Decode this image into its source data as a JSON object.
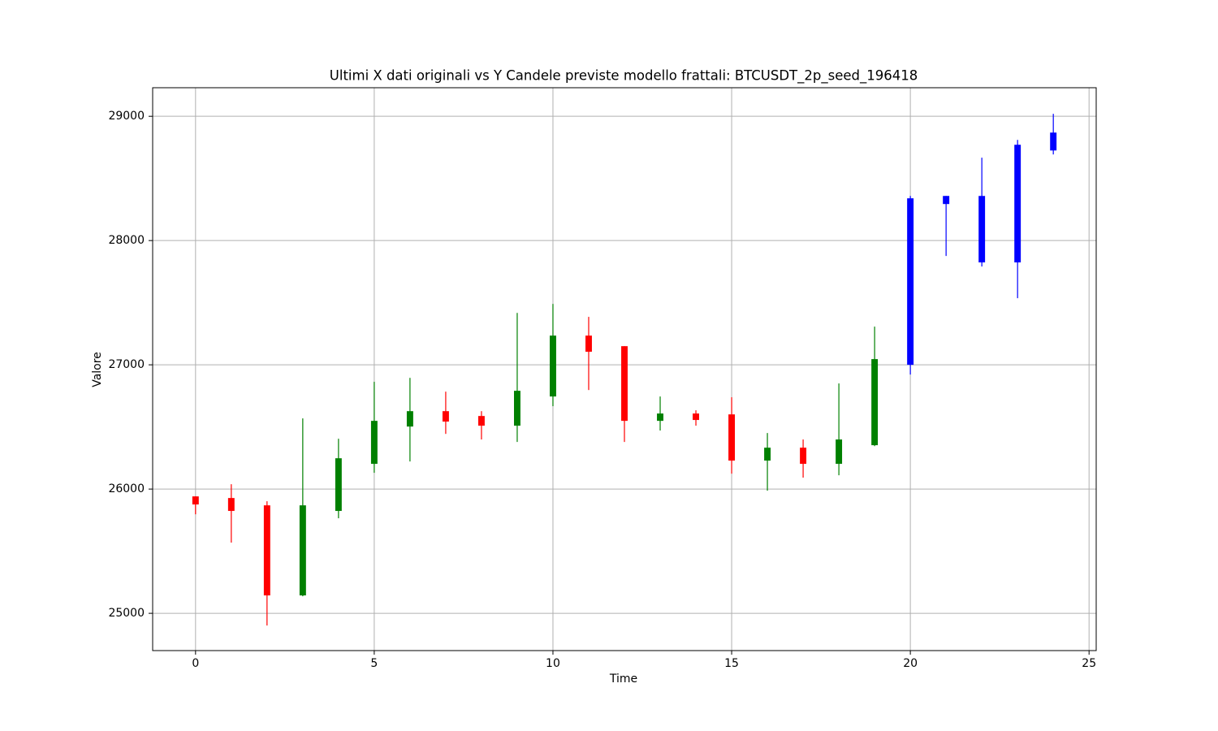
{
  "chart_data": {
    "type": "candlestick",
    "title": "Ultimi X dati originali vs Y Candele previste modello frattali: BTCUSDT_2p_seed_196418",
    "xlabel": "Time",
    "ylabel": "Valore",
    "x": [
      0,
      1,
      2,
      3,
      4,
      5,
      6,
      7,
      8,
      9,
      10,
      11,
      12,
      13,
      14,
      15,
      16,
      17,
      18,
      19,
      20,
      21,
      22,
      23,
      24
    ],
    "open": [
      25941,
      25928,
      25869,
      25144,
      25824,
      26203,
      26503,
      26627,
      26588,
      26510,
      26745,
      27235,
      27150,
      26549,
      26608,
      26601,
      26229,
      26333,
      26203,
      26353,
      27000,
      28359,
      27824,
      27824,
      28725
    ],
    "high": [
      25941,
      26039,
      25902,
      26569,
      26405,
      26863,
      26895,
      26784,
      26627,
      27418,
      27490,
      27386,
      27150,
      26745,
      26634,
      26739,
      26451,
      26399,
      26850,
      27307,
      28359,
      28359,
      28667,
      28810,
      29020
    ],
    "low": [
      25797,
      25569,
      24902,
      25137,
      25765,
      26131,
      26222,
      26444,
      26399,
      26379,
      26667,
      26797,
      26379,
      26471,
      26510,
      26124,
      25987,
      26092,
      26111,
      26346,
      26922,
      27876,
      27791,
      27536,
      28693
    ],
    "close": [
      25876,
      25824,
      25144,
      25869,
      26248,
      26549,
      26627,
      26543,
      26510,
      26791,
      27235,
      27105,
      26549,
      26608,
      26556,
      26229,
      26333,
      26203,
      26399,
      27046,
      28340,
      28294,
      28359,
      28771,
      28869
    ],
    "colors": [
      "red",
      "red",
      "red",
      "green",
      "green",
      "green",
      "green",
      "red",
      "red",
      "green",
      "green",
      "red",
      "red",
      "green",
      "red",
      "red",
      "green",
      "red",
      "green",
      "green",
      "blue",
      "blue",
      "blue",
      "blue",
      "blue"
    ],
    "xlim": [
      -1.2,
      25.2
    ],
    "ylim": [
      24700,
      29230
    ],
    "xticks": [
      0,
      5,
      10,
      15,
      20,
      25
    ],
    "yticks": [
      25000,
      26000,
      27000,
      28000,
      29000
    ],
    "grid": true
  }
}
